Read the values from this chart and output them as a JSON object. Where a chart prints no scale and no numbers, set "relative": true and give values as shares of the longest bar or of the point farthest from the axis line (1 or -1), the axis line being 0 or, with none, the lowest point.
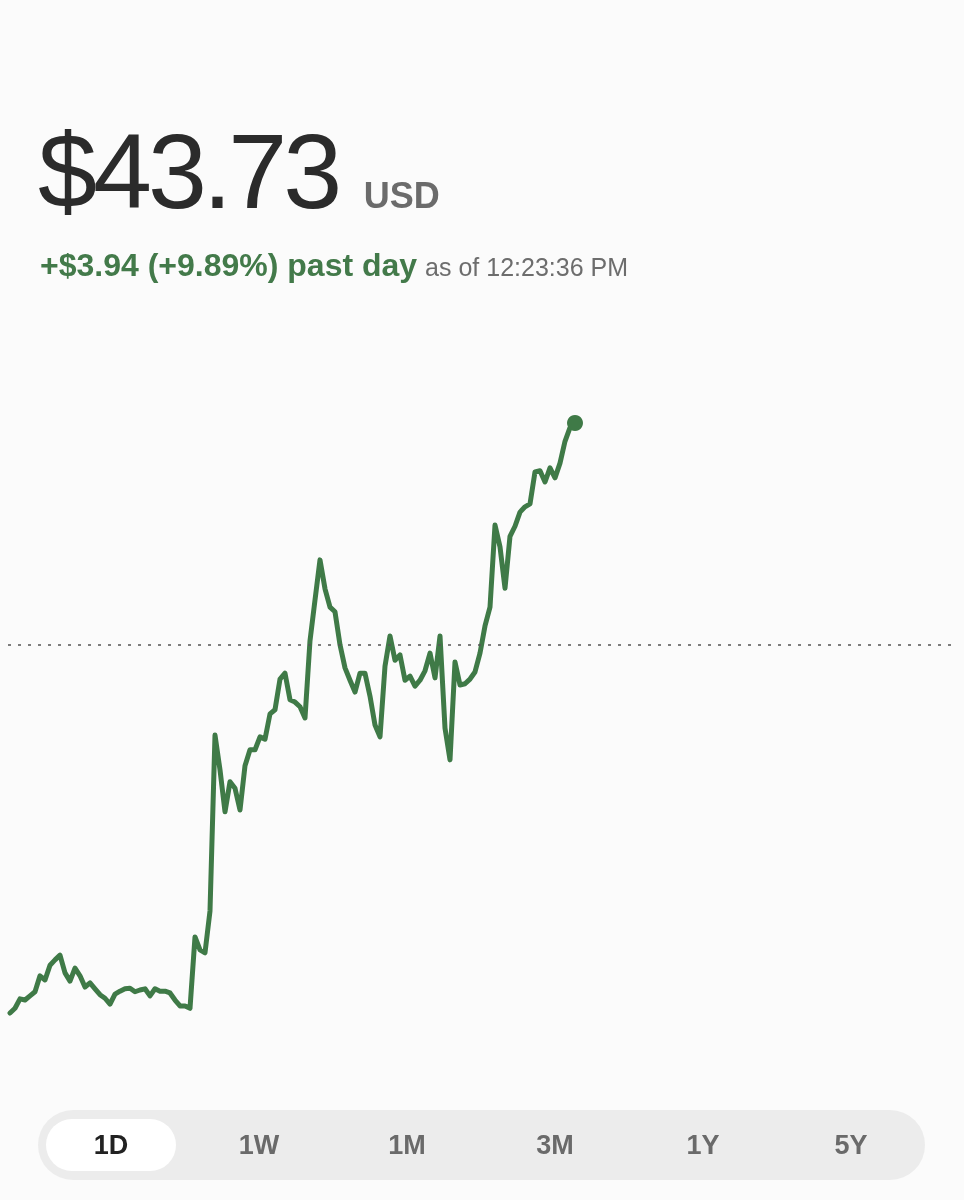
{
  "chart_data": {
    "type": "line",
    "relative": true,
    "title": "$43.73 USD",
    "subtitle": "+$3.94 (+9.89%) past day",
    "annotations": [
      "as of 12:23:36 PM",
      "1D",
      "1W",
      "1M",
      "3M",
      "1Y",
      "5Y"
    ],
    "marker": "none",
    "categories": [
      null,
      null,
      null,
      null,
      null,
      null,
      null,
      null,
      null,
      null,
      null,
      null,
      null,
      null,
      null,
      null,
      null,
      null,
      null,
      null,
      null,
      null,
      null,
      null,
      null,
      null,
      null,
      null,
      null,
      null,
      null,
      null,
      null,
      null,
      null,
      null,
      null,
      null,
      null,
      null,
      null,
      null,
      null,
      null,
      null,
      null,
      null,
      null,
      null,
      null,
      null,
      null,
      null,
      null,
      null,
      null,
      null,
      null,
      null,
      null,
      null,
      null,
      null,
      null,
      null,
      null,
      null,
      null,
      null,
      null,
      null,
      null,
      null,
      null,
      null,
      null,
      null,
      null,
      null,
      null,
      null,
      null,
      null,
      null,
      null,
      null,
      null,
      null,
      null,
      null,
      null,
      null,
      null,
      null,
      null,
      null,
      null,
      null,
      null,
      null,
      null,
      null,
      null,
      null,
      null,
      null,
      null,
      null,
      null,
      null,
      null,
      null,
      null,
      null
    ],
    "series": [
      {
        "color": "#3f7a47",
        "values": [
          0,
          0.008,
          0.024,
          0.022,
          0.029,
          0.036,
          0.063,
          0.056,
          0.081,
          0.09,
          0.098,
          0.068,
          0.054,
          0.076,
          0.063,
          0.044,
          0.051,
          0.041,
          0.031,
          0.025,
          0.015,
          0.032,
          0.037,
          0.041,
          0.042,
          0.036,
          0.039,
          0.041,
          0.029,
          0.041,
          0.037,
          0.037,
          0.034,
          0.022,
          0.012,
          0.012,
          0.008,
          0.129,
          0.107,
          0.102,
          0.173,
          0.471,
          0.412,
          0.341,
          0.392,
          0.381,
          0.344,
          0.419,
          0.446,
          0.446,
          0.468,
          0.464,
          0.507,
          0.514,
          0.566,
          0.576,
          0.531,
          0.527,
          0.519,
          0.5,
          0.631,
          0.7,
          0.768,
          0.719,
          0.688,
          0.68,
          0.624,
          0.585,
          0.564,
          0.544,
          0.576,
          0.576,
          0.537,
          0.488,
          0.468,
          0.588,
          0.639,
          0.598,
          0.607,
          0.564,
          0.571,
          0.554,
          0.564,
          0.58,
          0.61,
          0.568,
          0.639,
          0.483,
          0.429,
          0.595,
          0.556,
          0.558,
          0.566,
          0.578,
          0.61,
          0.656,
          0.688,
          0.827,
          0.79,
          0.72,
          0.808,
          0.825,
          0.849,
          0.858,
          0.863,
          0.917,
          0.919,
          0.9,
          0.924,
          0.907,
          0.932,
          0.969,
          0.992,
          1
        ]
      }
    ],
    "ref_lines": [
      {
        "axis": "y",
        "value": 0.624,
        "color": "#555555",
        "line_style": "dashed"
      }
    ]
  }
}
